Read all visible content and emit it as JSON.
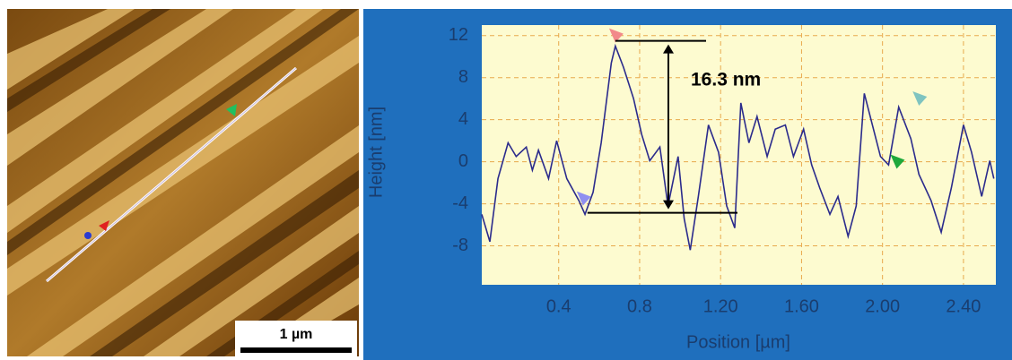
{
  "image": {
    "scale_bar_label": "1 µm"
  },
  "chart_data": {
    "type": "line",
    "y_label": "Height [nm]",
    "x_label": "Position [µm]",
    "annotation": "16.3 nm",
    "xlim": [
      0.02,
      2.56
    ],
    "ylim": [
      -11.7,
      13
    ],
    "xticks": [
      0.4,
      0.8,
      {
        "value": 1.2,
        "label": "1.20"
      },
      {
        "value": 1.6,
        "label": "1.60"
      },
      {
        "value": 2.0,
        "label": "2.00"
      },
      {
        "value": 2.4,
        "label": "2.40"
      }
    ],
    "yticks": [
      12,
      8,
      4,
      0,
      -4,
      -8
    ],
    "grid": true,
    "x": [
      0.02,
      0.06,
      0.1,
      0.15,
      0.19,
      0.24,
      0.27,
      0.3,
      0.35,
      0.39,
      0.44,
      0.5,
      0.53,
      0.57,
      0.61,
      0.66,
      0.68,
      0.72,
      0.77,
      0.81,
      0.85,
      0.9,
      0.94,
      0.99,
      1.02,
      1.05,
      1.09,
      1.14,
      1.19,
      1.23,
      1.27,
      1.3,
      1.34,
      1.38,
      1.43,
      1.47,
      1.52,
      1.56,
      1.61,
      1.65,
      1.69,
      1.74,
      1.78,
      1.83,
      1.87,
      1.91,
      1.95,
      1.99,
      2.03,
      2.08,
      2.14,
      2.18,
      2.24,
      2.29,
      2.34,
      2.4,
      2.44,
      2.49,
      2.53,
      2.55
    ],
    "series": [
      {
        "color": "#2b2b8c",
        "values": [
          -5,
          -7.6,
          -1.6,
          1.8,
          0.5,
          1.4,
          -0.8,
          1.1,
          -1.6,
          2,
          -1.6,
          -3.7,
          -5,
          -2.9,
          1.8,
          9.4,
          11,
          9,
          6,
          2.6,
          0.1,
          1.4,
          -4.2,
          0.5,
          -5.4,
          -8.4,
          -3.3,
          3.5,
          0.9,
          -4.2,
          -6.3,
          5.6,
          1.8,
          4.3,
          0.5,
          3.1,
          3.5,
          0.5,
          3.1,
          -0.3,
          -2.5,
          -5,
          -3.3,
          -7.1,
          -4.2,
          6.5,
          3.5,
          0.5,
          -0.3,
          5.2,
          2.2,
          -1.2,
          -3.7,
          -6.7,
          -2.5,
          3.5,
          0.9,
          -3.3,
          0.1,
          -1.6
        ]
      }
    ],
    "markers": [
      {
        "x": 0.68,
        "y": 11.5,
        "color": "#f28a8a"
      },
      {
        "x": 0.52,
        "y": -4,
        "color": "#8f8ff0"
      },
      {
        "x": 2.07,
        "y": -0.5,
        "color": "#1fa83a"
      },
      {
        "x": 2.18,
        "y": 5.5,
        "color": "#7fc4c0"
      }
    ]
  }
}
